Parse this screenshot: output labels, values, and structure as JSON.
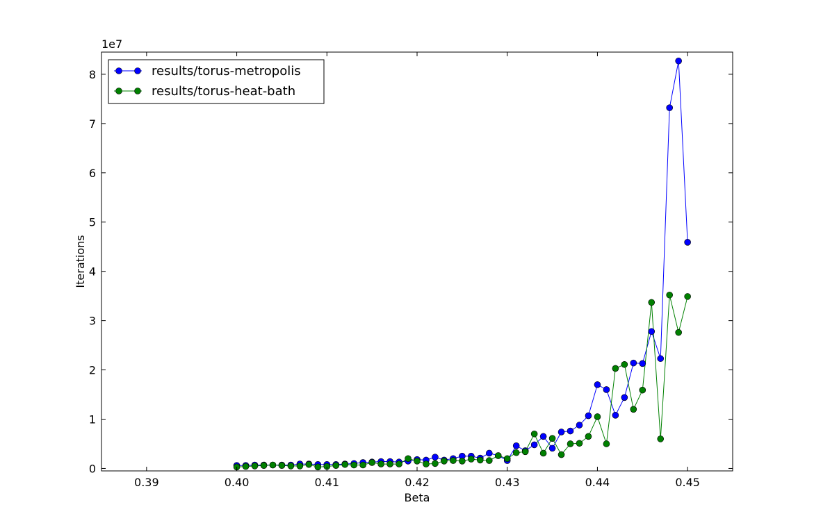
{
  "chart_data": {
    "type": "line",
    "title": "",
    "xlabel": "Beta",
    "ylabel": "Iterations",
    "y_offset_label": "1e7",
    "xlim": [
      0.385,
      0.455
    ],
    "ylim": [
      -0.05,
      8.45
    ],
    "x_ticks": [
      0.39,
      0.4,
      0.41,
      0.42,
      0.43,
      0.44,
      0.45
    ],
    "x_tick_labels": [
      "0.39",
      "0.40",
      "0.41",
      "0.42",
      "0.43",
      "0.44",
      "0.45"
    ],
    "y_ticks": [
      0,
      1,
      2,
      3,
      4,
      5,
      6,
      7,
      8
    ],
    "y_tick_labels": [
      "0",
      "1",
      "2",
      "3",
      "4",
      "5",
      "6",
      "7",
      "8"
    ],
    "y_unit_note": "values in units of 1e7",
    "grid": false,
    "legend_position": "top-left",
    "x": [
      0.4,
      0.401,
      0.402,
      0.403,
      0.404,
      0.405,
      0.406,
      0.407,
      0.408,
      0.409,
      0.41,
      0.411,
      0.412,
      0.413,
      0.414,
      0.415,
      0.416,
      0.417,
      0.418,
      0.419,
      0.42,
      0.421,
      0.422,
      0.423,
      0.424,
      0.425,
      0.426,
      0.427,
      0.428,
      0.429,
      0.43,
      0.431,
      0.432,
      0.433,
      0.434,
      0.435,
      0.436,
      0.437,
      0.438,
      0.439,
      0.44,
      0.441,
      0.442,
      0.443,
      0.444,
      0.445,
      0.446,
      0.447,
      0.448,
      0.449,
      0.45
    ],
    "series": [
      {
        "name": "results/torus-metropolis",
        "color": "#0000ff",
        "values": [
          0.06,
          0.06,
          0.07,
          0.07,
          0.07,
          0.07,
          0.07,
          0.09,
          0.09,
          0.08,
          0.08,
          0.08,
          0.09,
          0.1,
          0.12,
          0.13,
          0.14,
          0.14,
          0.13,
          0.15,
          0.18,
          0.17,
          0.23,
          0.17,
          0.2,
          0.25,
          0.25,
          0.21,
          0.31,
          0.26,
          0.16,
          0.46,
          0.36,
          0.48,
          0.65,
          0.41,
          0.74,
          0.76,
          0.88,
          1.07,
          1.7,
          1.6,
          1.08,
          1.44,
          2.14,
          2.13,
          2.78,
          2.23,
          7.32,
          8.27,
          4.59
        ]
      },
      {
        "name": "results/torus-heat-bath",
        "color": "#008000",
        "values": [
          0.03,
          0.04,
          0.05,
          0.06,
          0.07,
          0.06,
          0.05,
          0.05,
          0.08,
          0.03,
          0.04,
          0.06,
          0.08,
          0.07,
          0.07,
          0.12,
          0.09,
          0.09,
          0.09,
          0.2,
          0.15,
          0.09,
          0.1,
          0.15,
          0.16,
          0.15,
          0.19,
          0.17,
          0.16,
          0.26,
          0.2,
          0.32,
          0.34,
          0.7,
          0.31,
          0.61,
          0.28,
          0.5,
          0.51,
          0.65,
          1.05,
          0.5,
          2.03,
          2.11,
          1.2,
          1.59,
          3.37,
          0.6,
          3.52,
          2.76,
          3.49
        ]
      }
    ]
  }
}
